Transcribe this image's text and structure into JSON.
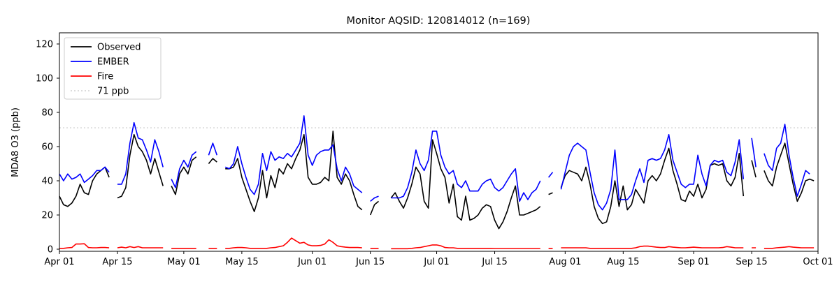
{
  "figure": {
    "background": "#ffffff",
    "monitor_aqsid": "120814012",
    "n_observations": 169
  },
  "chart_data": {
    "type": "line",
    "title": "Monitor AQSID: 120814012 (n=169)",
    "xlabel": "",
    "ylabel": "MDA8 O3 (ppb)",
    "ylim": [
      -1,
      126
    ],
    "yticks": [
      0,
      20,
      40,
      60,
      80,
      100,
      120
    ],
    "xticks": [
      {
        "label": "Apr 01",
        "day": 0
      },
      {
        "label": "Apr 15",
        "day": 14
      },
      {
        "label": "May 01",
        "day": 30
      },
      {
        "label": "May 15",
        "day": 44
      },
      {
        "label": "Jun 01",
        "day": 61
      },
      {
        "label": "Jun 15",
        "day": 75
      },
      {
        "label": "Jul 01",
        "day": 91
      },
      {
        "label": "Jul 15",
        "day": 105
      },
      {
        "label": "Aug 01",
        "day": 122
      },
      {
        "label": "Aug 15",
        "day": 136
      },
      {
        "label": "Sep 01",
        "day": 153
      },
      {
        "label": "Sep 15",
        "day": 167
      },
      {
        "label": "Oct 01",
        "day": 183
      }
    ],
    "grid": false,
    "legend_position": "upper-left",
    "threshold": {
      "value": 71,
      "label": "71 ppb",
      "color": "#c8c8c8",
      "style": "dotted"
    },
    "legend": [
      {
        "label": "Observed",
        "color": "#000000",
        "dash": ""
      },
      {
        "label": "EMBER",
        "color": "#0000ff",
        "dash": ""
      },
      {
        "label": "Fire",
        "color": "#ff0000",
        "dash": ""
      },
      {
        "label": "71 ppb",
        "color": "#c8c8c8",
        "dash": "2 3"
      }
    ],
    "dates": [
      "Apr 01",
      "Apr 02",
      "Apr 03",
      "Apr 04",
      "Apr 05",
      "Apr 06",
      "Apr 07",
      "Apr 08",
      "Apr 09",
      "Apr 10",
      "Apr 11",
      "Apr 12",
      "Apr 13",
      "Apr 14",
      "Apr 15",
      "Apr 16",
      "Apr 17",
      "Apr 18",
      "Apr 19",
      "Apr 20",
      "Apr 21",
      "Apr 22",
      "Apr 23",
      "Apr 24",
      "Apr 25",
      "Apr 26",
      "Apr 27",
      "Apr 28",
      "Apr 29",
      "Apr 30",
      "May 01",
      "May 02",
      "May 03",
      "May 04",
      "May 05",
      "May 06",
      "May 07",
      "May 08",
      "May 09",
      "May 10",
      "May 11",
      "May 12",
      "May 13",
      "May 14",
      "May 15",
      "May 16",
      "May 17",
      "May 18",
      "May 19",
      "May 20",
      "May 21",
      "May 22",
      "May 23",
      "May 24",
      "May 25",
      "May 26",
      "May 27",
      "May 28",
      "May 29",
      "May 30",
      "May 31",
      "Jun 01",
      "Jun 02",
      "Jun 03",
      "Jun 04",
      "Jun 05",
      "Jun 06",
      "Jun 07",
      "Jun 08",
      "Jun 09",
      "Jun 10",
      "Jun 11",
      "Jun 12",
      "Jun 13",
      "Jun 14",
      "Jun 15",
      "Jun 16",
      "Jun 17",
      "Jun 18",
      "Jun 19",
      "Jun 20",
      "Jun 21",
      "Jun 22",
      "Jun 23",
      "Jun 24",
      "Jun 25",
      "Jun 26",
      "Jun 27",
      "Jun 28",
      "Jun 29",
      "Jun 30",
      "Jul 01",
      "Jul 02",
      "Jul 03",
      "Jul 04",
      "Jul 05",
      "Jul 06",
      "Jul 07",
      "Jul 08",
      "Jul 09",
      "Jul 10",
      "Jul 11",
      "Jul 12",
      "Jul 13",
      "Jul 14",
      "Jul 15",
      "Jul 16",
      "Jul 17",
      "Jul 18",
      "Jul 19",
      "Jul 20",
      "Jul 21",
      "Jul 22",
      "Jul 23",
      "Jul 24",
      "Jul 25",
      "Jul 26",
      "Jul 27",
      "Jul 28",
      "Jul 29",
      "Jul 30",
      "Jul 31",
      "Aug 01",
      "Aug 02",
      "Aug 03",
      "Aug 04",
      "Aug 05",
      "Aug 06",
      "Aug 07",
      "Aug 08",
      "Aug 09",
      "Aug 10",
      "Aug 11",
      "Aug 12",
      "Aug 13",
      "Aug 14",
      "Aug 15",
      "Aug 16",
      "Aug 17",
      "Aug 18",
      "Aug 19",
      "Aug 20",
      "Aug 21",
      "Aug 22",
      "Aug 23",
      "Aug 24",
      "Aug 25",
      "Aug 26",
      "Aug 27",
      "Aug 28",
      "Aug 29",
      "Aug 30",
      "Aug 31",
      "Sep 01",
      "Sep 02",
      "Sep 03",
      "Sep 04",
      "Sep 05",
      "Sep 06",
      "Sep 07",
      "Sep 08",
      "Sep 09",
      "Sep 10",
      "Sep 11",
      "Sep 12",
      "Sep 13",
      "Sep 14",
      "Sep 15",
      "Sep 16",
      "Sep 17",
      "Sep 18",
      "Sep 19",
      "Sep 20",
      "Sep 21",
      "Sep 22",
      "Sep 23",
      "Sep 24",
      "Sep 25",
      "Sep 26",
      "Sep 27",
      "Sep 28",
      "Sep 29",
      "Sep 30",
      "Oct 01"
    ],
    "series": [
      {
        "name": "Observed",
        "color": "#000000",
        "values": [
          31,
          26,
          25,
          27,
          31,
          38,
          33,
          32,
          40,
          44,
          46,
          48,
          42,
          null,
          30,
          31,
          36,
          55,
          67,
          60,
          57,
          52,
          44,
          53,
          45,
          37,
          null,
          37,
          32,
          44,
          48,
          44,
          52,
          54,
          null,
          null,
          50,
          53,
          51,
          null,
          47,
          47,
          48,
          53,
          42,
          35,
          28,
          22,
          30,
          46,
          30,
          43,
          36,
          47,
          44,
          50,
          47,
          53,
          58,
          67,
          42,
          38,
          38,
          39,
          42,
          40,
          69,
          42,
          38,
          44,
          40,
          32,
          25,
          23,
          null,
          20,
          26,
          28,
          null,
          null,
          30,
          33,
          28,
          24,
          30,
          38,
          48,
          44,
          28,
          24,
          64,
          56,
          47,
          42,
          27,
          38,
          19,
          17,
          31,
          17,
          18,
          20,
          24,
          26,
          25,
          17,
          12,
          16,
          22,
          30,
          37,
          20,
          20,
          21,
          22,
          23,
          25,
          null,
          32,
          33,
          null,
          36,
          43,
          46,
          45,
          44,
          40,
          48,
          38,
          25,
          18,
          15,
          16,
          25,
          40,
          25,
          37,
          23,
          26,
          35,
          31,
          27,
          40,
          43,
          40,
          44,
          52,
          59,
          46,
          38,
          29,
          28,
          34,
          31,
          38,
          30,
          35,
          49,
          50,
          49,
          50,
          40,
          37,
          42,
          56,
          31,
          null,
          52,
          42,
          null,
          46,
          40,
          37,
          48,
          55,
          62,
          50,
          38,
          28,
          33,
          40,
          41,
          40,
          null
        ]
      },
      {
        "name": "EMBER",
        "color": "#0000ff",
        "values": [
          44,
          40,
          44,
          41,
          42,
          44,
          39,
          41,
          43,
          46,
          46,
          48,
          45,
          null,
          38,
          38,
          44,
          62,
          74,
          65,
          64,
          58,
          51,
          64,
          57,
          48,
          null,
          41,
          36,
          47,
          52,
          48,
          55,
          57,
          null,
          null,
          55,
          62,
          55,
          null,
          48,
          47,
          50,
          60,
          50,
          42,
          35,
          32,
          38,
          56,
          46,
          57,
          52,
          54,
          53,
          56,
          54,
          58,
          62,
          78,
          55,
          49,
          55,
          57,
          58,
          58,
          61,
          47,
          40,
          48,
          44,
          37,
          35,
          33,
          null,
          28,
          30,
          31,
          null,
          null,
          30,
          30,
          30,
          31,
          36,
          45,
          58,
          50,
          46,
          52,
          69,
          69,
          55,
          48,
          44,
          46,
          38,
          36,
          40,
          34,
          34,
          34,
          38,
          40,
          41,
          36,
          34,
          36,
          40,
          44,
          47,
          28,
          33,
          29,
          33,
          35,
          40,
          null,
          42,
          45,
          null,
          35,
          45,
          55,
          60,
          62,
          60,
          58,
          45,
          33,
          26,
          23,
          27,
          35,
          58,
          29,
          29,
          29,
          32,
          40,
          47,
          39,
          52,
          53,
          52,
          53,
          58,
          67,
          52,
          45,
          38,
          36,
          38,
          38,
          55,
          44,
          37,
          49,
          52,
          51,
          52,
          45,
          43,
          51,
          64,
          41,
          null,
          65,
          48,
          null,
          56,
          49,
          46,
          59,
          62,
          73,
          55,
          42,
          31,
          38,
          46,
          44,
          null,
          null
        ]
      },
      {
        "name": "Fire",
        "color": "#ff0000",
        "values": [
          0.5,
          0.5,
          0.8,
          1,
          3,
          3,
          3.2,
          1,
          0.8,
          0.8,
          1,
          1,
          0.8,
          null,
          0.8,
          1.2,
          0.8,
          1.5,
          1,
          1.5,
          0.8,
          0.8,
          0.8,
          0.8,
          0.8,
          0.8,
          null,
          0.5,
          0.5,
          0.5,
          0.5,
          0.5,
          0.5,
          0.5,
          null,
          null,
          0.5,
          0.5,
          0.5,
          null,
          0.5,
          0.5,
          0.8,
          1,
          1,
          0.8,
          0.5,
          0.5,
          0.5,
          0.5,
          0.5,
          0.8,
          1,
          1.5,
          2,
          4,
          6.5,
          5,
          3.5,
          4,
          2.5,
          2,
          2,
          2.2,
          3,
          5.5,
          4,
          2,
          1.5,
          1.2,
          1,
          1,
          1,
          0.8,
          null,
          0.5,
          0.5,
          0.5,
          null,
          null,
          0.3,
          0.3,
          0.3,
          0.3,
          0.3,
          0.5,
          0.8,
          1,
          1.5,
          2,
          2.5,
          2.5,
          2,
          1,
          0.8,
          0.8,
          0.5,
          0.5,
          0.5,
          0.5,
          0.5,
          0.5,
          0.5,
          0.5,
          0.5,
          0.4,
          0.4,
          0.4,
          0.4,
          0.4,
          0.4,
          0.4,
          0.4,
          0.4,
          0.4,
          0.4,
          0.4,
          null,
          0.5,
          0.5,
          null,
          0.8,
          0.8,
          0.8,
          0.8,
          0.8,
          0.8,
          0.8,
          0.5,
          0.5,
          0.5,
          0.5,
          0.5,
          0.5,
          0.5,
          0.5,
          0.5,
          0.5,
          0.5,
          0.8,
          1.5,
          1.8,
          1.8,
          1.5,
          1.2,
          1,
          1,
          1.5,
          1.2,
          1,
          0.8,
          0.8,
          1,
          1.2,
          1,
          0.8,
          0.8,
          0.8,
          0.8,
          0.8,
          1,
          1.5,
          1.2,
          0.8,
          0.8,
          0.8,
          null,
          0.8,
          0.8,
          null,
          0.5,
          0.5,
          0.5,
          0.8,
          1,
          1.2,
          1.5,
          1.2,
          1,
          0.8,
          0.8,
          0.8,
          0.8,
          null
        ]
      }
    ]
  }
}
